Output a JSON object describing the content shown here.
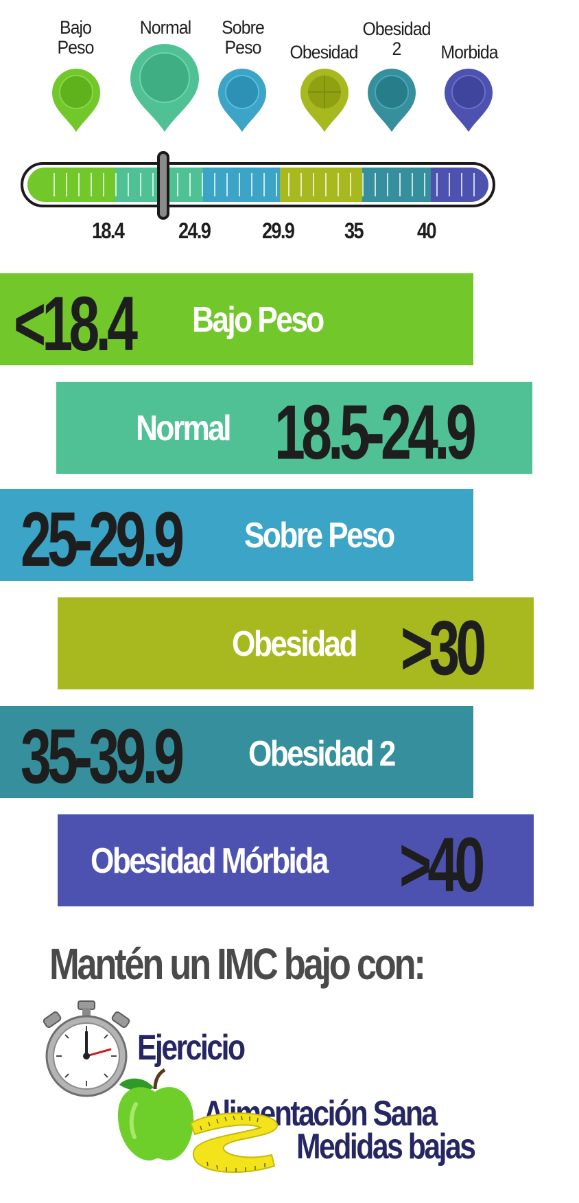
{
  "colors": {
    "bajo_peso": "#72c82a",
    "normal": "#4fc194",
    "sobre_peso": "#3ba4c7",
    "obesidad": "#a8b81f",
    "obesidad2": "#358f9c",
    "morbida": "#4d52b0",
    "dark_text": "#1e1e1e",
    "tip_text": "#262663"
  },
  "pins": [
    {
      "label_line1": "Bajo",
      "label_line2": "Peso",
      "color": "#72c82a"
    },
    {
      "label_line1": "",
      "label_line2": "Normal",
      "color": "#4fc194"
    },
    {
      "label_line1": "Sobre",
      "label_line2": "Peso",
      "color": "#3ba4c7"
    },
    {
      "label_line1": "",
      "label_line2": "Obesidad",
      "color": "#a8b81f"
    },
    {
      "label_line1": "Obesidad",
      "label_line2": "2",
      "color": "#358f9c"
    },
    {
      "label_line1": "",
      "label_line2": "Morbida",
      "color": "#4d52b0"
    }
  ],
  "scale": {
    "ticks": [
      "18.4",
      "24.9",
      "29.9",
      "35",
      "40"
    ],
    "marker_value": 22
  },
  "bands": [
    {
      "value": "<18.4",
      "label": "Bajo Peso",
      "color": "#72c82a"
    },
    {
      "value": "18.5-24.9",
      "label": "Normal",
      "color": "#4fc194"
    },
    {
      "value": "25-29.9",
      "label": "Sobre Peso",
      "color": "#3ba4c7"
    },
    {
      "value": ">30",
      "label": "Obesidad",
      "color": "#a8b81f"
    },
    {
      "value": "35-39.9",
      "label": "Obesidad 2",
      "color": "#358f9c"
    },
    {
      "value": ">40",
      "label": "Obesidad Mórbida",
      "color": "#4d52b0"
    }
  ],
  "tips": {
    "heading": "Mantén un IMC bajo con:",
    "items": [
      {
        "label": "Ejercicio",
        "icon": "stopwatch-icon"
      },
      {
        "label": "Alimentación Sana",
        "icon": "apple-icon"
      },
      {
        "label": "Medidas bajas",
        "icon": "measuring-tape-icon"
      }
    ]
  }
}
